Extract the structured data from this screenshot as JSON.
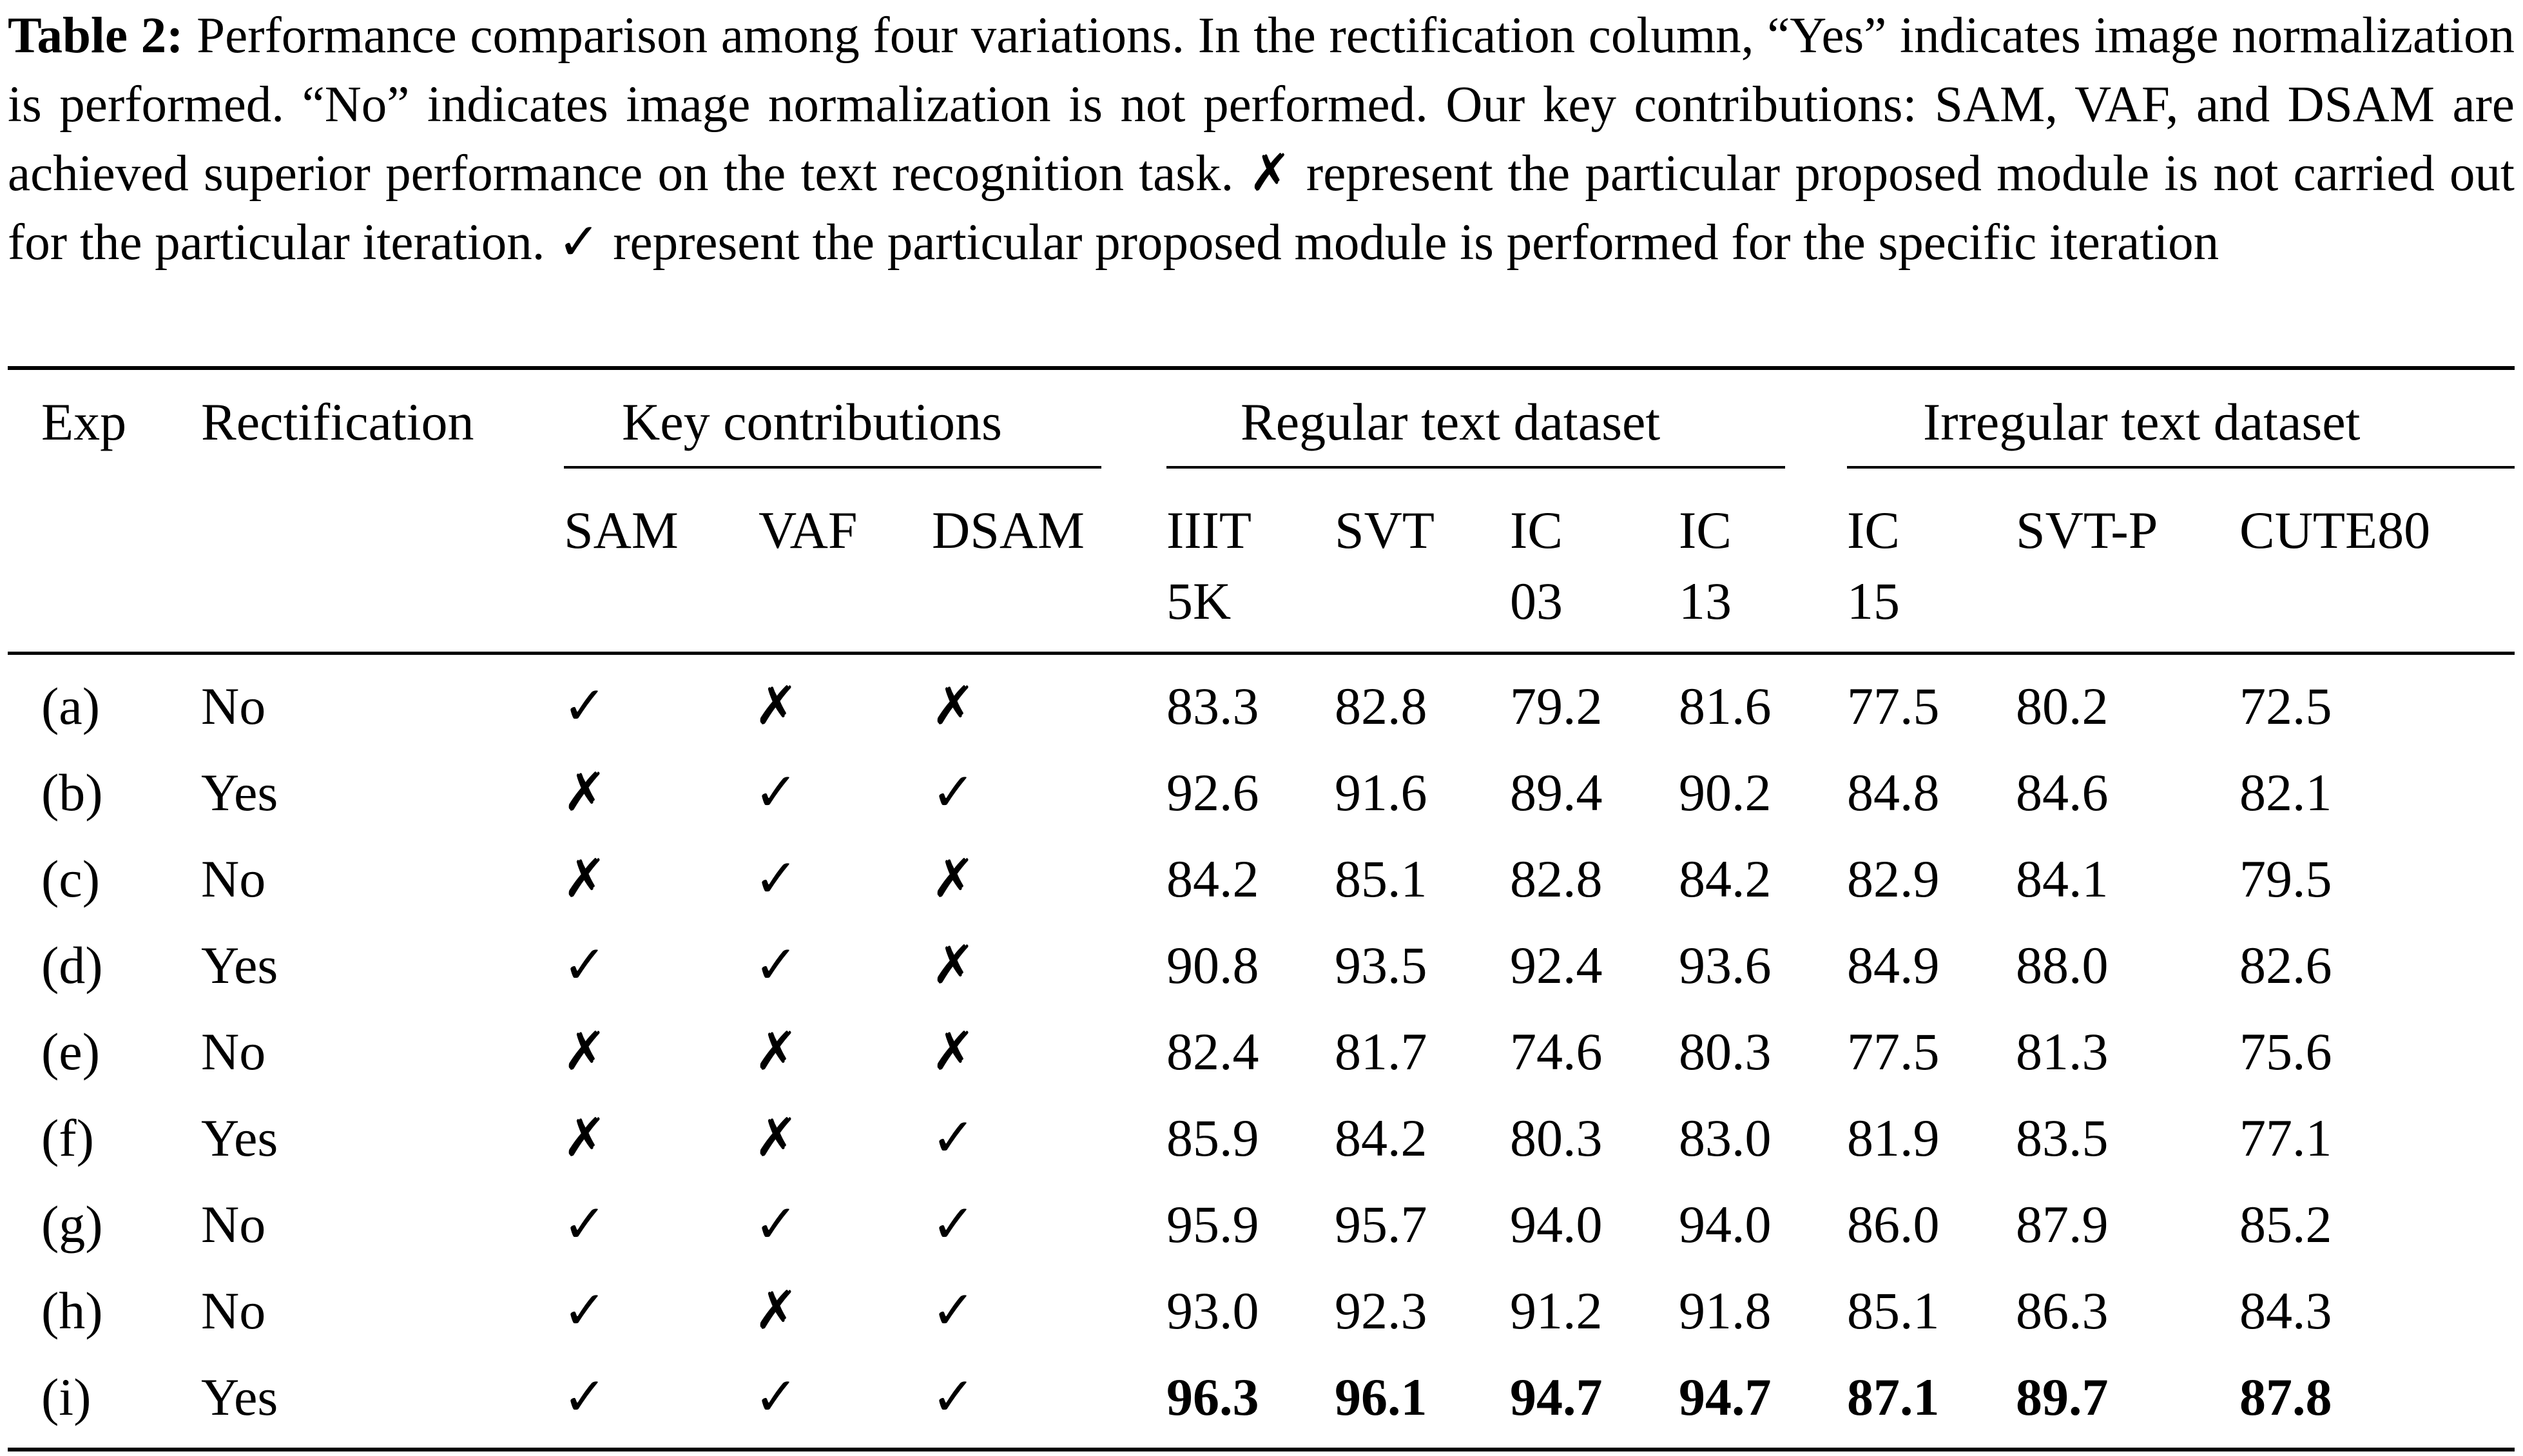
{
  "caption": {
    "label": "Table 2:",
    "text": " Performance comparison among four variations. In the rectification column, “Yes” indicates image normalization is performed. “No” indicates image normalization is not performed. Our key contributions: SAM, VAF, and DSAM are achieved superior performance on the text recognition task. ✗ represent the particular proposed module is not carried out for the particular iteration. ✓ represent the particular proposed module is performed for the specific iteration"
  },
  "table": {
    "group_headers": {
      "exp": "Exp",
      "rectification": "Rectification",
      "key_contributions": "Key contributions",
      "regular": "Regular text dataset",
      "irregular": "Irregular text dataset"
    },
    "sub_headers": {
      "sam": "SAM",
      "vaf": "VAF",
      "dsam": "DSAM",
      "iiit_1": "IIIT",
      "iiit_2": "5K",
      "svt": "SVT",
      "ic03_1": "IC",
      "ic03_2": "03",
      "ic13_1": "IC",
      "ic13_2": "13",
      "ic15_1": "IC",
      "ic15_2": "15",
      "svtp": "SVT-P",
      "cute": "CUTE80"
    },
    "rows": [
      {
        "exp": "(a)",
        "rect": "No",
        "sam": "✓",
        "vaf": "✗",
        "dsam": "✗",
        "iiit": "83.3",
        "svt": "82.8",
        "ic03": "79.2",
        "ic13": "81.6",
        "ic15": "77.5",
        "svtp": "80.2",
        "cute": "72.5"
      },
      {
        "exp": "(b)",
        "rect": "Yes",
        "sam": "✗",
        "vaf": "✓",
        "dsam": "✓",
        "iiit": "92.6",
        "svt": "91.6",
        "ic03": "89.4",
        "ic13": "90.2",
        "ic15": "84.8",
        "svtp": "84.6",
        "cute": "82.1"
      },
      {
        "exp": "(c)",
        "rect": "No",
        "sam": "✗",
        "vaf": "✓",
        "dsam": "✗",
        "iiit": "84.2",
        "svt": "85.1",
        "ic03": "82.8",
        "ic13": "84.2",
        "ic15": "82.9",
        "svtp": "84.1",
        "cute": "79.5"
      },
      {
        "exp": "(d)",
        "rect": "Yes",
        "sam": "✓",
        "vaf": "✓",
        "dsam": "✗",
        "iiit": "90.8",
        "svt": "93.5",
        "ic03": "92.4",
        "ic13": "93.6",
        "ic15": "84.9",
        "svtp": "88.0",
        "cute": "82.6"
      },
      {
        "exp": "(e)",
        "rect": "No",
        "sam": "✗",
        "vaf": "✗",
        "dsam": "✗",
        "iiit": "82.4",
        "svt": "81.7",
        "ic03": "74.6",
        "ic13": "80.3",
        "ic15": "77.5",
        "svtp": "81.3",
        "cute": "75.6"
      },
      {
        "exp": "(f)",
        "rect": "Yes",
        "sam": "✗",
        "vaf": "✗",
        "dsam": "✓",
        "iiit": "85.9",
        "svt": "84.2",
        "ic03": "80.3",
        "ic13": "83.0",
        "ic15": "81.9",
        "svtp": "83.5",
        "cute": "77.1"
      },
      {
        "exp": "(g)",
        "rect": "No",
        "sam": "✓",
        "vaf": "✓",
        "dsam": "✓",
        "iiit": "95.9",
        "svt": "95.7",
        "ic03": "94.0",
        "ic13": "94.0",
        "ic15": "86.0",
        "svtp": "87.9",
        "cute": "85.2"
      },
      {
        "exp": "(h)",
        "rect": "No",
        "sam": "✓",
        "vaf": "✗",
        "dsam": "✓",
        "iiit": "93.0",
        "svt": "92.3",
        "ic03": "91.2",
        "ic13": "91.8",
        "ic15": "85.1",
        "svtp": "86.3",
        "cute": "84.3"
      },
      {
        "exp": "(i)",
        "rect": "Yes",
        "sam": "✓",
        "vaf": "✓",
        "dsam": "✓",
        "iiit": "96.3",
        "svt": "96.1",
        "ic03": "94.7",
        "ic13": "94.7",
        "ic15": "87.1",
        "svtp": "89.7",
        "cute": "87.8",
        "bold": true
      }
    ]
  }
}
